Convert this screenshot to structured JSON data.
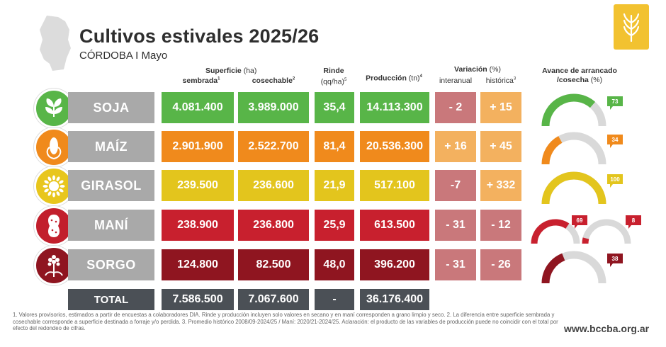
{
  "title": "Cultivos estivales 2025/26",
  "subtitle": "CÓRDOBA I Mayo",
  "headers": {
    "superficie": "Superficie",
    "superficie_unit": "(ha)",
    "sembrada": "sembrada",
    "sembrada_note": "1",
    "cosechable": "cosechable",
    "cosechable_note": "2",
    "rinde": "Rinde",
    "rinde_unit": "(qq/ha)",
    "rinde_note": "5",
    "produccion": "Producción",
    "produccion_unit": "(tn)",
    "produccion_note": "4",
    "variacion": "Variación",
    "variacion_unit": "(%)",
    "interanual": "interanual",
    "historica": "histórica",
    "historica_note": "3",
    "avance_line1": "Avance de arrancado",
    "avance_line2": "/cosecha",
    "avance_unit": "(%)"
  },
  "chart_data": {
    "type": "table",
    "title": "Cultivos estivales 2025/26",
    "subtitle": "CÓRDOBA I Mayo",
    "columns": [
      "sembrada",
      "cosechable",
      "Rinde (qq/ha)",
      "Producción (tn)",
      "Variación interanual",
      "Variación histórica",
      "Avance de arrancado/cosecha (%)"
    ],
    "rows": [
      {
        "crop": "SOJA",
        "sembrada": "4.081.400",
        "cosechable": "3.989.000",
        "rinde": "35,4",
        "produccion": "14.113.300",
        "interanual": "- 2",
        "historica": "+ 15",
        "avance": [
          73
        ],
        "avance_labels": [
          "73"
        ],
        "color": "#58b548",
        "circle": "#58b548"
      },
      {
        "crop": "MAÍZ",
        "sembrada": "2.901.900",
        "cosechable": "2.522.700",
        "rinde": "81,4",
        "produccion": "20.536.300",
        "interanual": "+ 16",
        "historica": "+ 45",
        "avance": [
          34
        ],
        "avance_labels": [
          "34"
        ],
        "color": "#f08a1c",
        "circle": "#f08a1c"
      },
      {
        "crop": "GIRASOL",
        "sembrada": "239.500",
        "cosechable": "236.600",
        "rinde": "21,9",
        "produccion": "517.100",
        "interanual": "-7",
        "historica": "+ 332",
        "avance": [
          100
        ],
        "avance_labels": [
          "100"
        ],
        "color": "#e3c51d",
        "circle": "#e8c61d"
      },
      {
        "crop": "MANÍ",
        "sembrada": "238.900",
        "cosechable": "236.800",
        "rinde": "25,9",
        "produccion": "613.500",
        "interanual": "- 31",
        "historica": "- 12",
        "avance": [
          69,
          8
        ],
        "avance_labels": [
          "69",
          "8"
        ],
        "color": "#c8202e",
        "circle": "#c21f2c"
      },
      {
        "crop": "SORGO",
        "sembrada": "124.800",
        "cosechable": "82.500",
        "rinde": "48,0",
        "produccion": "396.200",
        "interanual": "- 31",
        "historica": "- 26",
        "avance": [
          38
        ],
        "avance_labels": [
          "38"
        ],
        "color": "#8f1520",
        "circle": "#8f1520"
      }
    ],
    "total": {
      "label": "TOTAL",
      "sembrada": "7.586.500",
      "cosechable": "7.067.600",
      "rinde": "-",
      "produccion": "36.176.400"
    },
    "variation_colors": {
      "positive": "#f3b15f",
      "negative": "#c9787b"
    }
  },
  "footnote": "1. Valores provisorios, estimados a partir de encuestas a colaboradores DIA. Rinde y producción incluyen solo valores en secano y en maní corresponden a grano limpio y seco. 2. La diferencia entre superficie sembrada y cosechable corresponde a superficie destinada a forraje y/o perdida. 3. Promedio histórico 2008/09-2024/25 / Maní: 2020/21-2024/25. Aclaración: el producto de las variables de producción puede no coincidir con el total por efecto del redondeo de cifras.",
  "website": "www.bccba.org.ar"
}
